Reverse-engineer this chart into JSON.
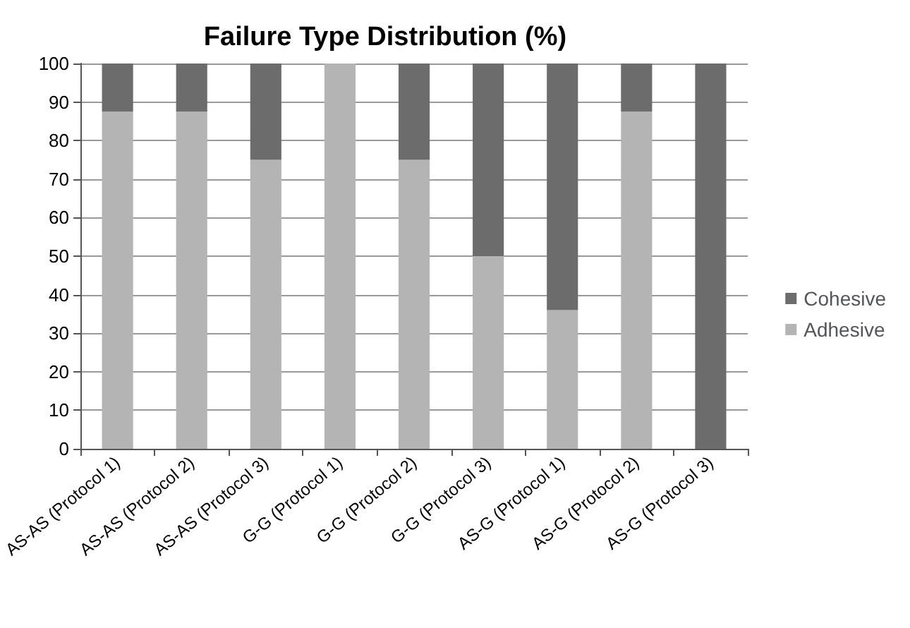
{
  "chart_data": {
    "type": "bar",
    "title": "Failure Type Distribution (%)",
    "categories": [
      "AS-AS (Protocol 1)",
      "AS-AS (Protocol 2)",
      "AS-AS (Protocol 3)",
      "G-G (Protocol 1)",
      "G-G (Protocol 2)",
      "G-G (Protocol 3)",
      "AS-G (Protocol 1)",
      "AS-G (Protocol 2)",
      "AS-G (Protocol 3)"
    ],
    "series": [
      {
        "name": "Adhesive",
        "color": "#b4b4b4",
        "values": [
          87.5,
          87.5,
          75,
          100,
          75,
          50,
          36,
          87.5,
          0
        ]
      },
      {
        "name": "Cohesive",
        "color": "#6c6c6c",
        "values": [
          12.5,
          12.5,
          25,
          0,
          25,
          50,
          64,
          12.5,
          100
        ]
      }
    ],
    "stacked": true,
    "ylim": [
      0,
      100
    ],
    "yticks": [
      0,
      10,
      20,
      30,
      40,
      50,
      60,
      70,
      80,
      90,
      100
    ],
    "grid": "y",
    "legend": "right"
  }
}
